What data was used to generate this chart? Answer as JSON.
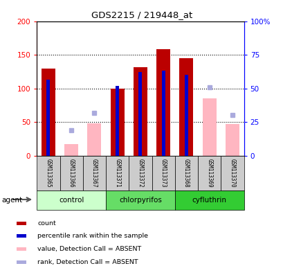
{
  "title": "GDS2215 / 219448_at",
  "samples": [
    "GSM113365",
    "GSM113366",
    "GSM113367",
    "GSM113371",
    "GSM113372",
    "GSM113373",
    "GSM113368",
    "GSM113369",
    "GSM113370"
  ],
  "groups": [
    {
      "name": "control",
      "indices": [
        0,
        1,
        2
      ]
    },
    {
      "name": "chlorpyrifos",
      "indices": [
        3,
        4,
        5
      ]
    },
    {
      "name": "cyfluthrin",
      "indices": [
        6,
        7,
        8
      ]
    }
  ],
  "red_bars": [
    130,
    null,
    null,
    100,
    132,
    158,
    145,
    null,
    null
  ],
  "blue_markers_left_scale": [
    113,
    null,
    null,
    104,
    124,
    127,
    120,
    null,
    null
  ],
  "pink_bars": [
    null,
    17,
    48,
    null,
    null,
    null,
    null,
    85,
    47
  ],
  "lavender_markers_right_scale": [
    null,
    19,
    32,
    null,
    null,
    null,
    null,
    51,
    30
  ],
  "ylim": [
    0,
    200
  ],
  "y2lim": [
    0,
    100
  ],
  "yticks_left": [
    0,
    50,
    100,
    150,
    200
  ],
  "ytick_labels_left": [
    "0",
    "50",
    "100",
    "150",
    "200"
  ],
  "ytick_labels_right": [
    "0",
    "25",
    "50",
    "75",
    "100%"
  ],
  "dotted_lines": [
    50,
    100,
    150
  ],
  "bar_width": 0.6,
  "blue_bar_width": 0.15,
  "red_color": "#BB0000",
  "blue_color": "#0000CC",
  "pink_color": "#FFB6C1",
  "lavender_color": "#AAAADD",
  "group_colors": [
    "#CCFFCC",
    "#66DD66",
    "#33CC33"
  ],
  "sample_box_color": "#CCCCCC",
  "legend_labels": [
    "count",
    "percentile rank within the sample",
    "value, Detection Call = ABSENT",
    "rank, Detection Call = ABSENT"
  ],
  "legend_colors": [
    "#BB0000",
    "#0000CC",
    "#FFB6C1",
    "#AAAADD"
  ]
}
